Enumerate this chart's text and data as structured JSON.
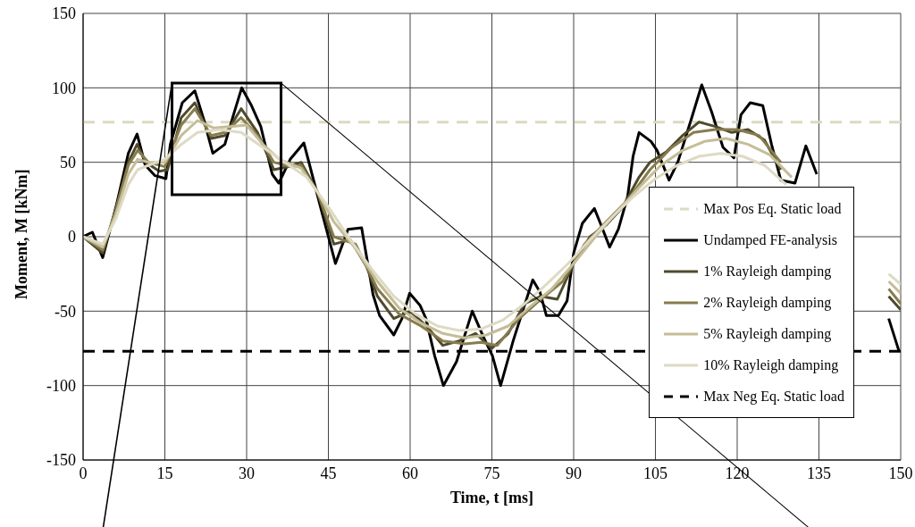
{
  "chart_data": {
    "type": "line",
    "xlabel": "Time, t [ms]",
    "ylabel": "Moment, M [kNm]",
    "xlim": [
      0,
      150
    ],
    "ylim": [
      -150,
      150
    ],
    "xticks": [
      0,
      15,
      30,
      45,
      60,
      75,
      90,
      105,
      120,
      135,
      150
    ],
    "yticks": [
      -150,
      -100,
      -50,
      0,
      50,
      100,
      150
    ],
    "grid": true,
    "legend": "right",
    "marker": "none",
    "line_style": "solid",
    "series": [
      {
        "name": "Max Pos Eq. Static load",
        "color": "#ddd9c3",
        "line_style": "dashed",
        "x": [
          0,
          150
        ],
        "values": [
          77,
          77
        ]
      },
      {
        "name": "Undamped FE-analysis",
        "color": "#000000",
        "x": [
          0,
          1.7,
          3.6,
          6.1,
          8.3,
          9.9,
          11.4,
          13.2,
          15.2,
          16,
          18.2,
          20.5,
          22.2,
          23.8,
          26,
          27.6,
          29.1,
          30.9,
          32.6,
          34.7,
          35.9,
          38,
          40.5,
          42,
          43.7,
          46.3,
          48.6,
          51.1,
          53.2,
          54.4,
          57,
          58.5,
          59.9,
          61.8,
          62.9,
          64.5,
          66.1,
          68.5,
          71.4,
          73.4,
          75.1,
          76.6,
          78.9,
          80.9,
          82.5,
          83.8,
          85,
          87.2,
          88.8,
          90,
          91.6,
          93.8,
          94.9,
          96.6,
          98.2,
          99.9,
          100.9,
          102,
          104.2,
          105.3,
          107.5,
          109.1,
          111.5,
          113.5,
          115.3,
          117.4,
          119.4,
          120.7,
          122.4,
          124.7,
          126.3,
          128,
          130.6,
          132.6,
          134.6,
          140,
          147.8,
          149.7
        ],
        "values": [
          0,
          3,
          -14,
          21,
          56,
          69,
          48,
          41,
          39,
          62,
          90,
          98,
          78,
          56,
          62,
          82,
          100,
          88,
          74,
          42,
          36,
          52,
          63,
          42,
          18,
          -18,
          5,
          6,
          -39,
          -53,
          -66,
          -55,
          -38,
          -46,
          -55,
          -80,
          -100,
          -84,
          -50,
          -67,
          -80,
          -100,
          -70,
          -47,
          -29,
          -37,
          -53,
          -53,
          -43,
          -11,
          9,
          19,
          9,
          -7,
          5,
          27,
          54,
          70,
          64,
          58,
          38,
          50,
          78,
          102,
          84,
          60,
          53,
          82,
          90,
          88,
          62,
          38,
          36,
          61,
          42,
          null,
          -55,
          -77
        ]
      },
      {
        "name": "1% Rayleigh damping",
        "color": "#4f4a2c",
        "x": [
          0,
          3.6,
          6,
          8.3,
          9.9,
          11.5,
          14,
          15.5,
          18,
          20.5,
          23.5,
          26,
          29,
          32,
          35,
          37.5,
          40,
          43,
          46,
          49,
          52,
          54,
          57,
          60,
          63,
          66,
          69,
          72,
          75,
          78,
          81,
          84,
          87,
          90,
          93,
          96,
          99,
          102,
          104,
          107,
          110,
          113,
          116,
          119,
          122,
          125,
          128,
          135,
          147.8,
          150
        ],
        "values": [
          0,
          -11,
          18,
          50,
          62,
          50,
          44,
          45,
          80,
          90,
          66,
          68,
          86,
          70,
          45,
          47,
          50,
          30,
          -5,
          -2,
          -20,
          -40,
          -55,
          -50,
          -60,
          -73,
          -70,
          -65,
          -75,
          -65,
          -45,
          -40,
          -42,
          -18,
          0,
          8,
          20,
          40,
          50,
          57,
          68,
          77,
          74,
          70,
          72,
          65,
          45,
          null,
          -40,
          -49
        ]
      },
      {
        "name": "2% Rayleigh damping",
        "color": "#877c4e",
        "x": [
          0,
          3.6,
          6,
          8.3,
          10,
          12,
          15,
          18,
          20.5,
          23.5,
          26,
          29,
          32,
          35,
          38,
          40,
          43,
          46,
          50,
          54,
          58,
          62,
          66,
          70,
          73,
          76,
          80,
          84,
          88,
          92,
          96,
          100,
          104,
          108,
          112,
          116,
          120,
          124,
          128,
          138,
          147.8,
          150
        ],
        "values": [
          0,
          -9,
          18,
          48,
          58,
          50,
          47,
          75,
          86,
          68,
          70,
          80,
          68,
          50,
          47,
          48,
          30,
          0,
          -5,
          -35,
          -52,
          -60,
          -70,
          -72,
          -71,
          -73,
          -55,
          -42,
          -30,
          -5,
          10,
          25,
          45,
          60,
          70,
          72,
          72,
          68,
          50,
          null,
          -35,
          -45
        ]
      },
      {
        "name": "5% Rayleigh damping",
        "color": "#c4bd97",
        "x": [
          0,
          3.6,
          6,
          8.3,
          10,
          12,
          15,
          18,
          21,
          24,
          27,
          30,
          33,
          36,
          40,
          43,
          46,
          50,
          54,
          58,
          62,
          66,
          70,
          74,
          78,
          82,
          86,
          90,
          94,
          98,
          102,
          106,
          110,
          114,
          118,
          122,
          126,
          130,
          138,
          147.8,
          150
        ],
        "values": [
          0,
          -7,
          15,
          42,
          52,
          50,
          50,
          68,
          78,
          73,
          74,
          75,
          62,
          52,
          46,
          30,
          10,
          -8,
          -30,
          -48,
          -58,
          -65,
          -68,
          -66,
          -60,
          -47,
          -35,
          -18,
          0,
          17,
          33,
          48,
          58,
          64,
          66,
          62,
          55,
          40,
          null,
          -30,
          -38
        ]
      },
      {
        "name": "10% Rayleigh damping",
        "color": "#dedac4",
        "x": [
          0,
          3.6,
          6,
          8.3,
          10,
          12,
          15,
          18,
          21,
          25,
          29,
          33,
          37,
          41,
          45,
          49,
          53,
          57,
          61,
          65,
          69,
          73,
          77,
          81,
          85,
          89,
          93,
          97,
          101,
          105,
          109,
          113,
          117,
          121,
          125,
          129,
          138,
          147.8,
          150
        ],
        "values": [
          0,
          -5,
          12,
          35,
          45,
          48,
          52,
          62,
          70,
          72,
          70,
          60,
          50,
          40,
          20,
          -2,
          -22,
          -40,
          -52,
          -60,
          -63,
          -62,
          -56,
          -45,
          -32,
          -18,
          -2,
          13,
          27,
          39,
          48,
          54,
          56,
          54,
          48,
          35,
          null,
          -25,
          -32
        ]
      },
      {
        "name": "Max Neg Eq. Static load",
        "color": "#000000",
        "line_style": "dashed",
        "x": [
          0,
          150
        ],
        "values": [
          -77,
          -77
        ]
      }
    ]
  }
}
